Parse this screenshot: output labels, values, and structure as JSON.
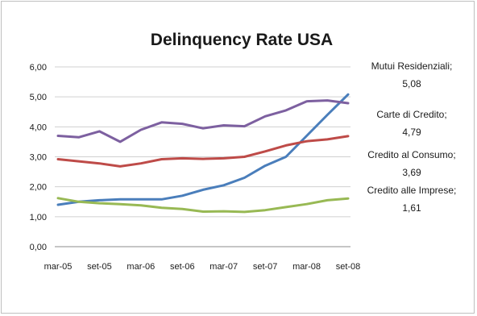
{
  "chart_data": {
    "type": "line",
    "title": "Delinquency Rate USA",
    "xlabel": "",
    "ylabel": "",
    "ylim": [
      0,
      6
    ],
    "y_ticks": [
      "0,00",
      "1,00",
      "2,00",
      "3,00",
      "4,00",
      "5,00",
      "6,00"
    ],
    "x_tick_labels": [
      "mar-05",
      "set-05",
      "mar-06",
      "set-06",
      "mar-07",
      "set-07",
      "mar-08",
      "set-08"
    ],
    "x": [
      "mar-05",
      "giu-05",
      "set-05",
      "dic-05",
      "mar-06",
      "giu-06",
      "set-06",
      "dic-06",
      "mar-07",
      "giu-07",
      "set-07",
      "dic-07",
      "mar-08",
      "giu-08",
      "set-08"
    ],
    "grid": "horizontal",
    "legend": "right, direct labels",
    "series": [
      {
        "name": "Mutui Residenziali",
        "value_label": "5,08",
        "color": "#4a7ebb",
        "values": [
          1.4,
          1.5,
          1.55,
          1.58,
          1.58,
          1.58,
          1.7,
          1.9,
          2.05,
          2.3,
          2.7,
          3.0,
          3.7,
          4.4,
          5.08
        ]
      },
      {
        "name": "Carte di Credito",
        "value_label": "4,79",
        "color": "#7d60a0",
        "values": [
          3.7,
          3.65,
          3.85,
          3.5,
          3.9,
          4.15,
          4.1,
          3.95,
          4.05,
          4.02,
          4.35,
          4.55,
          4.85,
          4.88,
          4.79
        ]
      },
      {
        "name": "Credito al Consumo",
        "value_label": "3,69",
        "color": "#be4b48",
        "values": [
          2.92,
          2.85,
          2.78,
          2.68,
          2.78,
          2.92,
          2.95,
          2.93,
          2.95,
          3.0,
          3.18,
          3.38,
          3.52,
          3.58,
          3.69
        ]
      },
      {
        "name": "Credito alle Imprese",
        "value_label": "1,61",
        "color": "#98b954",
        "values": [
          1.62,
          1.5,
          1.45,
          1.42,
          1.38,
          1.3,
          1.26,
          1.17,
          1.18,
          1.16,
          1.22,
          1.32,
          1.42,
          1.55,
          1.61
        ]
      }
    ]
  }
}
